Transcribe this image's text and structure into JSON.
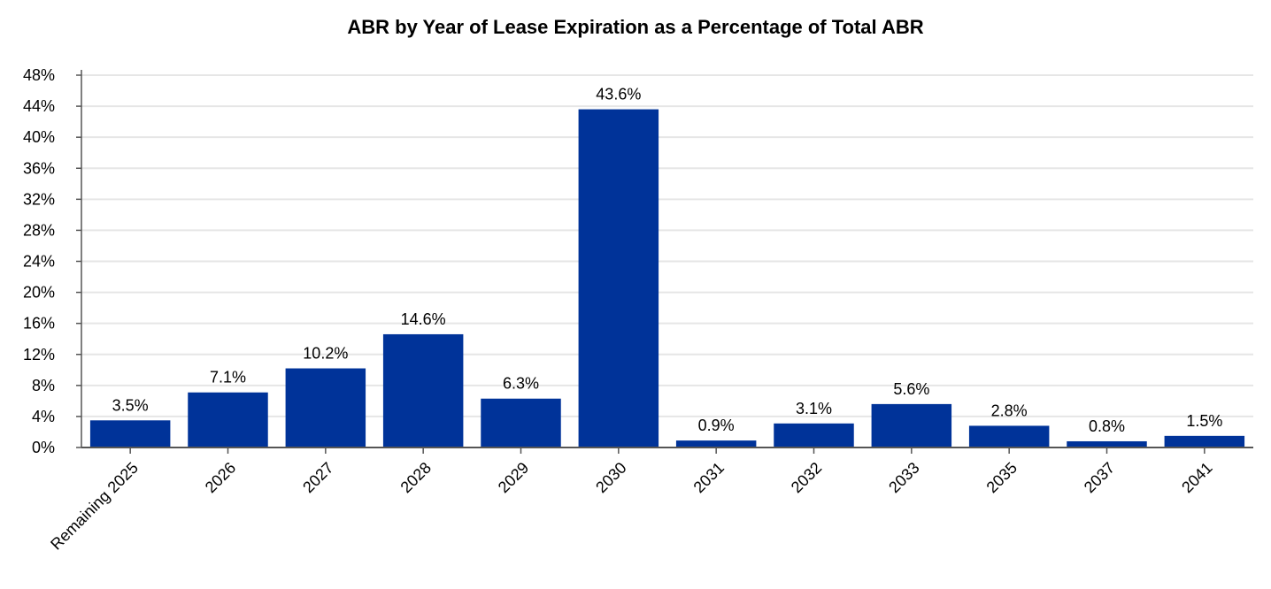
{
  "chart_data": {
    "type": "bar",
    "title": "ABR by Year of Lease Expiration as a Percentage of Total ABR",
    "xlabel": "",
    "ylabel": "",
    "categories": [
      "Remaining 2025",
      "2026",
      "2027",
      "2028",
      "2029",
      "2030",
      "2031",
      "2032",
      "2033",
      "2035",
      "2037",
      "2041"
    ],
    "values": [
      3.5,
      7.1,
      10.2,
      14.6,
      6.3,
      43.6,
      0.9,
      3.1,
      5.6,
      2.8,
      0.8,
      1.5
    ],
    "data_labels": [
      "3.5%",
      "7.1%",
      "10.2%",
      "14.6%",
      "6.3%",
      "43.6%",
      "0.9%",
      "3.1%",
      "5.6%",
      "2.8%",
      "0.8%",
      "1.5%"
    ],
    "ylim": [
      0,
      48
    ],
    "yticks": [
      0,
      4,
      8,
      12,
      16,
      20,
      24,
      28,
      32,
      36,
      40,
      44,
      48
    ],
    "ytick_labels": [
      "0%",
      "4%",
      "8%",
      "12%",
      "16%",
      "20%",
      "24%",
      "28%",
      "32%",
      "36%",
      "40%",
      "44%",
      "48%"
    ],
    "grid": true,
    "legend": "none",
    "bar_color": "#003399",
    "grid_color": "#e6e6e6",
    "axis_color": "#555555"
  }
}
